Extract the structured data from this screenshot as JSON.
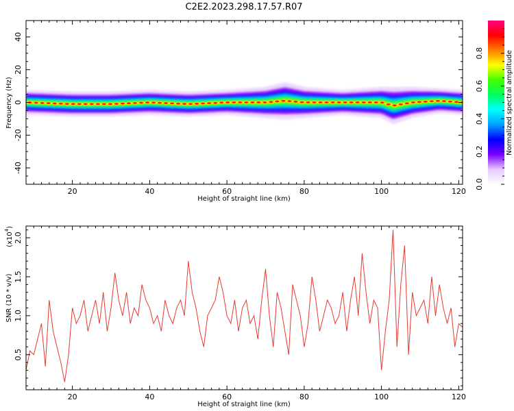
{
  "title": "C2E2.2023.298.17.57.R07",
  "colors": {
    "snr_line": "#e8372f",
    "colorbar": [
      "#ffffff",
      "#e6c8ff",
      "#7800ff",
      "#0000ff",
      "#00a0ff",
      "#00ffff",
      "#00ff60",
      "#40ff00",
      "#ffff00",
      "#ff8000",
      "#ff0000",
      "#ff0080"
    ]
  },
  "chart_data": [
    {
      "type": "heatmap",
      "xlabel": "Height of straight line (km)",
      "ylabel": "Frequency (Hz)",
      "xlim": [
        8,
        121
      ],
      "ylim": [
        -50,
        50
      ],
      "xticks": [
        "20",
        "40",
        "60",
        "80",
        "100",
        "120"
      ],
      "yticks": [
        "40",
        "20",
        "0",
        "-20",
        "-40"
      ],
      "xtick_values": [
        20,
        40,
        60,
        80,
        100,
        120
      ],
      "ytick_values": [
        40,
        20,
        0,
        -20,
        -40
      ],
      "colorbar": {
        "label": "Normalized spectral amplitude",
        "range": [
          0,
          1
        ],
        "ticks": [
          "0.0",
          "0.2",
          "0.4",
          "0.6",
          "0.8"
        ],
        "tick_values": [
          0.0,
          0.2,
          0.4,
          0.6,
          0.8
        ]
      },
      "band": {
        "center_x": [
          8,
          20,
          30,
          40,
          50,
          60,
          70,
          75,
          80,
          90,
          100,
          103,
          108,
          115,
          121
        ],
        "center_y": [
          0,
          -1,
          -1,
          0,
          -1,
          0,
          0,
          1,
          0,
          0,
          0,
          -2,
          0,
          1,
          0
        ],
        "halfwidth_y": [
          4,
          4,
          4,
          4,
          4,
          4,
          5,
          6,
          5,
          4,
          5,
          6,
          5,
          4,
          4
        ]
      }
    },
    {
      "type": "line",
      "xlabel": "Height of straight line (km)",
      "ylabel": "SNR (10 * v/v)",
      "scale_label": "(x10",
      "scale_exponent": "4",
      "scale_suffix": ")",
      "xlim": [
        8,
        121
      ],
      "ylim": [
        0.05,
        2.15
      ],
      "xticks": [
        "20",
        "40",
        "60",
        "80",
        "100",
        "120"
      ],
      "yticks": [
        "0.5",
        "1.0",
        "1.5",
        "2.0"
      ],
      "xtick_values": [
        20,
        40,
        60,
        80,
        100,
        120
      ],
      "ytick_values": [
        0.5,
        1.0,
        1.5,
        2.0
      ],
      "series": [
        {
          "x": [
            8,
            9,
            10,
            11,
            12,
            13,
            14,
            15,
            16,
            17,
            18,
            19,
            20,
            21,
            22,
            23,
            24,
            25,
            26,
            27,
            28,
            29,
            30,
            31,
            32,
            33,
            34,
            35,
            36,
            37,
            38,
            39,
            40,
            41,
            42,
            43,
            44,
            45,
            46,
            47,
            48,
            49,
            50,
            51,
            52,
            53,
            54,
            55,
            56,
            57,
            58,
            59,
            60,
            61,
            62,
            63,
            64,
            65,
            66,
            67,
            68,
            69,
            70,
            71,
            72,
            73,
            74,
            75,
            76,
            77,
            78,
            79,
            80,
            81,
            82,
            83,
            84,
            85,
            86,
            87,
            88,
            89,
            90,
            91,
            92,
            93,
            94,
            95,
            96,
            97,
            98,
            99,
            100,
            101,
            102,
            103,
            104,
            105,
            106,
            107,
            108,
            109,
            110,
            111,
            112,
            113,
            114,
            115,
            116,
            117,
            118,
            119,
            120,
            121
          ],
          "y": [
            0.3,
            0.55,
            0.5,
            0.7,
            0.9,
            0.35,
            1.2,
            0.8,
            0.6,
            0.4,
            0.15,
            0.5,
            1.1,
            0.9,
            1.0,
            1.2,
            0.8,
            1.0,
            1.2,
            0.9,
            1.3,
            0.8,
            1.1,
            1.55,
            1.2,
            1.0,
            1.3,
            0.9,
            1.1,
            1.0,
            1.4,
            1.2,
            1.1,
            0.9,
            1.0,
            0.8,
            1.2,
            1.0,
            0.9,
            1.1,
            1.2,
            1.0,
            1.7,
            1.3,
            1.1,
            0.8,
            0.6,
            1.0,
            1.1,
            1.2,
            1.5,
            1.3,
            1.0,
            0.9,
            1.2,
            0.8,
            1.1,
            1.2,
            0.9,
            1.0,
            0.7,
            1.2,
            1.6,
            1.0,
            0.6,
            1.3,
            1.1,
            0.8,
            0.5,
            1.4,
            1.2,
            1.0,
            0.6,
            0.9,
            1.5,
            1.2,
            0.8,
            1.0,
            1.2,
            1.1,
            0.9,
            1.0,
            1.3,
            0.8,
            1.2,
            1.5,
            1.0,
            1.8,
            1.3,
            0.9,
            1.2,
            1.1,
            0.3,
            0.8,
            1.2,
            2.1,
            0.6,
            1.4,
            1.9,
            0.5,
            1.3,
            1.0,
            1.1,
            1.2,
            0.9,
            1.5,
            1.0,
            1.4,
            1.1,
            0.9,
            1.1,
            0.6,
            0.9,
            0.85
          ]
        }
      ]
    }
  ]
}
